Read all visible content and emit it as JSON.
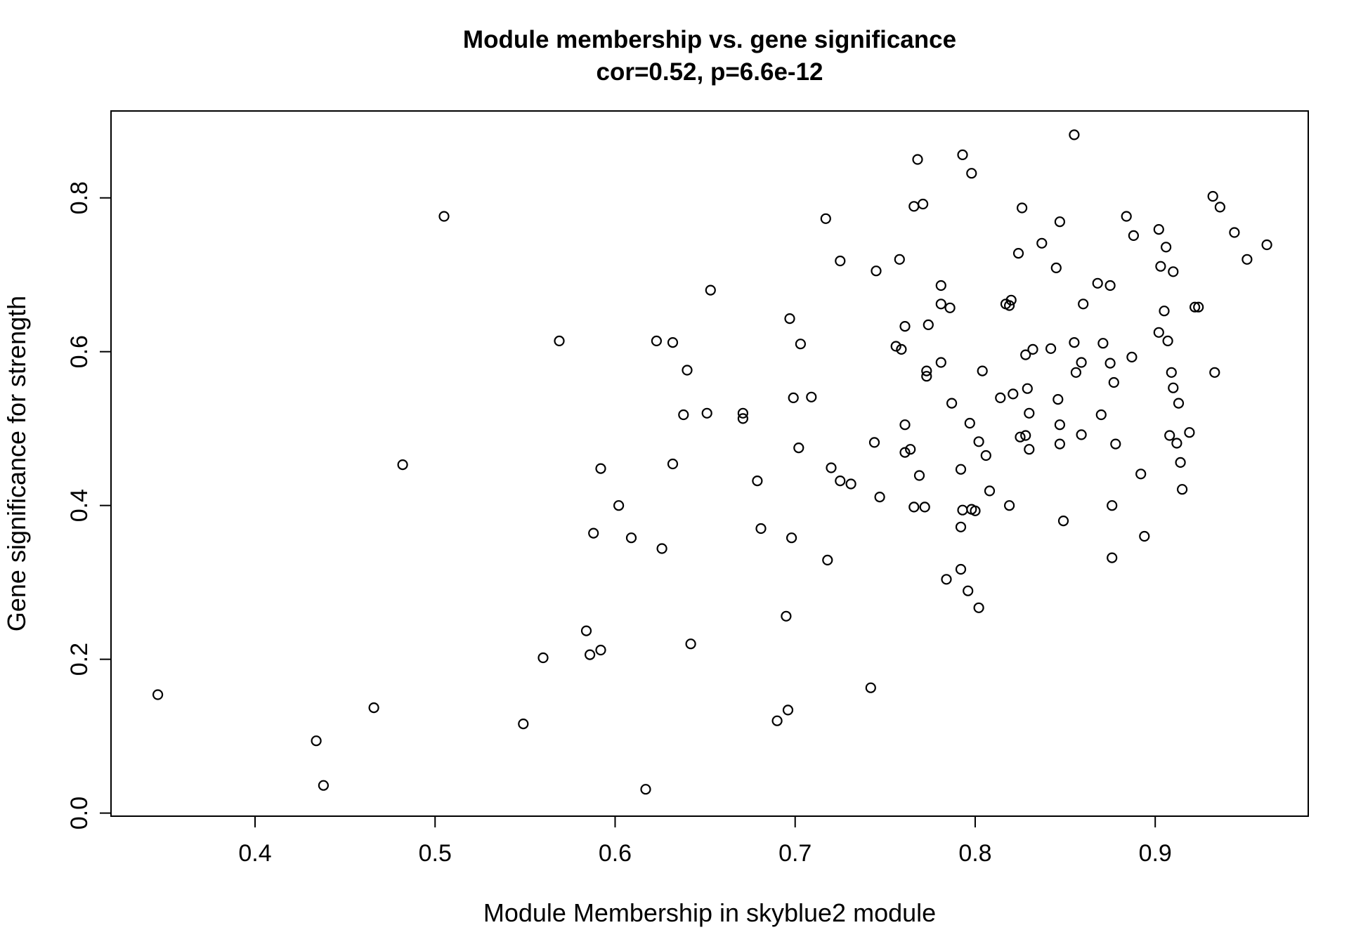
{
  "chart_data": {
    "type": "scatter",
    "title": "Module membership vs. gene significance",
    "subtitle": "cor=0.52, p=6.6e-12",
    "xlabel": "Module Membership in skyblue2 module",
    "ylabel": "Gene significance for strength",
    "xlim": [
      0.32,
      0.985
    ],
    "ylim": [
      -0.004,
      0.913
    ],
    "xticks": [
      "0.4",
      "0.5",
      "0.6",
      "0.7",
      "0.8",
      "0.9"
    ],
    "yticks": [
      "0.0",
      "0.2",
      "0.4",
      "0.6",
      "0.8"
    ],
    "grid": false,
    "legend": "none",
    "points": [
      [
        0.346,
        0.154
      ],
      [
        0.434,
        0.094
      ],
      [
        0.438,
        0.036
      ],
      [
        0.466,
        0.137
      ],
      [
        0.482,
        0.453
      ],
      [
        0.505,
        0.776
      ],
      [
        0.549,
        0.116
      ],
      [
        0.56,
        0.202
      ],
      [
        0.569,
        0.614
      ],
      [
        0.584,
        0.237
      ],
      [
        0.586,
        0.206
      ],
      [
        0.588,
        0.364
      ],
      [
        0.592,
        0.448
      ],
      [
        0.592,
        0.212
      ],
      [
        0.602,
        0.4
      ],
      [
        0.609,
        0.358
      ],
      [
        0.617,
        0.031
      ],
      [
        0.623,
        0.614
      ],
      [
        0.626,
        0.344
      ],
      [
        0.632,
        0.612
      ],
      [
        0.632,
        0.454
      ],
      [
        0.638,
        0.518
      ],
      [
        0.64,
        0.576
      ],
      [
        0.642,
        0.22
      ],
      [
        0.651,
        0.52
      ],
      [
        0.653,
        0.68
      ],
      [
        0.671,
        0.52
      ],
      [
        0.671,
        0.513
      ],
      [
        0.679,
        0.432
      ],
      [
        0.681,
        0.37
      ],
      [
        0.69,
        0.12
      ],
      [
        0.695,
        0.256
      ],
      [
        0.696,
        0.134
      ],
      [
        0.697,
        0.643
      ],
      [
        0.698,
        0.358
      ],
      [
        0.699,
        0.54
      ],
      [
        0.702,
        0.475
      ],
      [
        0.703,
        0.61
      ],
      [
        0.709,
        0.541
      ],
      [
        0.717,
        0.773
      ],
      [
        0.718,
        0.329
      ],
      [
        0.72,
        0.449
      ],
      [
        0.725,
        0.718
      ],
      [
        0.725,
        0.432
      ],
      [
        0.731,
        0.428
      ],
      [
        0.742,
        0.163
      ],
      [
        0.744,
        0.482
      ],
      [
        0.745,
        0.705
      ],
      [
        0.747,
        0.411
      ],
      [
        0.756,
        0.607
      ],
      [
        0.758,
        0.72
      ],
      [
        0.759,
        0.603
      ],
      [
        0.761,
        0.633
      ],
      [
        0.761,
        0.505
      ],
      [
        0.761,
        0.469
      ],
      [
        0.764,
        0.473
      ],
      [
        0.766,
        0.789
      ],
      [
        0.766,
        0.398
      ],
      [
        0.768,
        0.85
      ],
      [
        0.769,
        0.439
      ],
      [
        0.771,
        0.792
      ],
      [
        0.772,
        0.398
      ],
      [
        0.773,
        0.575
      ],
      [
        0.773,
        0.568
      ],
      [
        0.774,
        0.635
      ],
      [
        0.781,
        0.686
      ],
      [
        0.781,
        0.662
      ],
      [
        0.781,
        0.586
      ],
      [
        0.784,
        0.304
      ],
      [
        0.786,
        0.657
      ],
      [
        0.787,
        0.533
      ],
      [
        0.792,
        0.447
      ],
      [
        0.792,
        0.372
      ],
      [
        0.792,
        0.317
      ],
      [
        0.793,
        0.856
      ],
      [
        0.793,
        0.394
      ],
      [
        0.796,
        0.289
      ],
      [
        0.797,
        0.507
      ],
      [
        0.798,
        0.832
      ],
      [
        0.798,
        0.395
      ],
      [
        0.8,
        0.393
      ],
      [
        0.802,
        0.483
      ],
      [
        0.802,
        0.267
      ],
      [
        0.804,
        0.575
      ],
      [
        0.806,
        0.465
      ],
      [
        0.808,
        0.419
      ],
      [
        0.814,
        0.54
      ],
      [
        0.817,
        0.662
      ],
      [
        0.819,
        0.66
      ],
      [
        0.819,
        0.4
      ],
      [
        0.82,
        0.667
      ],
      [
        0.821,
        0.545
      ],
      [
        0.824,
        0.728
      ],
      [
        0.825,
        0.489
      ],
      [
        0.826,
        0.787
      ],
      [
        0.828,
        0.596
      ],
      [
        0.828,
        0.491
      ],
      [
        0.829,
        0.552
      ],
      [
        0.83,
        0.52
      ],
      [
        0.83,
        0.473
      ],
      [
        0.832,
        0.603
      ],
      [
        0.837,
        0.741
      ],
      [
        0.842,
        0.604
      ],
      [
        0.845,
        0.709
      ],
      [
        0.846,
        0.538
      ],
      [
        0.847,
        0.769
      ],
      [
        0.847,
        0.505
      ],
      [
        0.847,
        0.48
      ],
      [
        0.849,
        0.38
      ],
      [
        0.855,
        0.882
      ],
      [
        0.855,
        0.612
      ],
      [
        0.856,
        0.573
      ],
      [
        0.859,
        0.586
      ],
      [
        0.859,
        0.492
      ],
      [
        0.86,
        0.662
      ],
      [
        0.868,
        0.689
      ],
      [
        0.87,
        0.518
      ],
      [
        0.871,
        0.611
      ],
      [
        0.875,
        0.686
      ],
      [
        0.875,
        0.585
      ],
      [
        0.876,
        0.4
      ],
      [
        0.876,
        0.332
      ],
      [
        0.877,
        0.56
      ],
      [
        0.878,
        0.48
      ],
      [
        0.884,
        0.776
      ],
      [
        0.887,
        0.593
      ],
      [
        0.888,
        0.751
      ],
      [
        0.892,
        0.441
      ],
      [
        0.894,
        0.36
      ],
      [
        0.902,
        0.759
      ],
      [
        0.902,
        0.625
      ],
      [
        0.903,
        0.711
      ],
      [
        0.905,
        0.653
      ],
      [
        0.906,
        0.736
      ],
      [
        0.907,
        0.614
      ],
      [
        0.908,
        0.491
      ],
      [
        0.909,
        0.573
      ],
      [
        0.91,
        0.553
      ],
      [
        0.91,
        0.704
      ],
      [
        0.912,
        0.481
      ],
      [
        0.913,
        0.533
      ],
      [
        0.914,
        0.456
      ],
      [
        0.915,
        0.421
      ],
      [
        0.919,
        0.495
      ],
      [
        0.922,
        0.658
      ],
      [
        0.924,
        0.658
      ],
      [
        0.932,
        0.802
      ],
      [
        0.933,
        0.573
      ],
      [
        0.936,
        0.788
      ],
      [
        0.944,
        0.755
      ],
      [
        0.951,
        0.72
      ],
      [
        0.962,
        0.739
      ]
    ]
  }
}
